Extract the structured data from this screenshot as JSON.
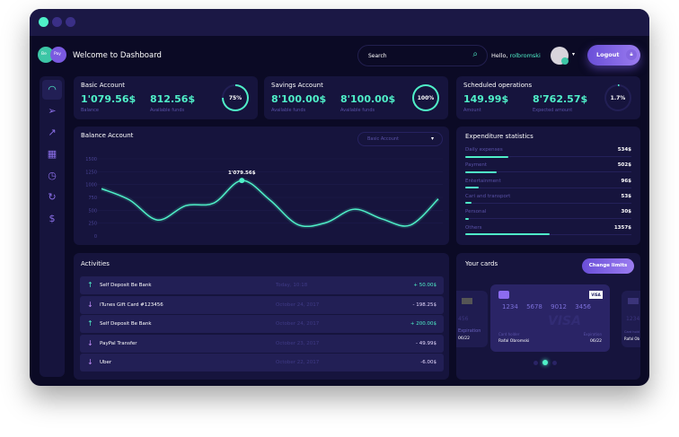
{
  "window": {
    "dots": [
      "#4ff0c8",
      "#3a2f86",
      "#3a2f86"
    ]
  },
  "logo": {
    "left": "Be",
    "right": "Pay"
  },
  "header": {
    "title": "Welcome to Dashboard",
    "search_placeholder": "Search",
    "greeting": "Hello,",
    "username": "rolbromski",
    "logout": "Logout"
  },
  "sidebar": {
    "items": [
      {
        "icon": "dashboard-gauge-icon"
      },
      {
        "icon": "send-icon"
      },
      {
        "icon": "chart-icon"
      },
      {
        "icon": "calendar-icon"
      },
      {
        "icon": "stopwatch-icon"
      },
      {
        "icon": "refresh-icon"
      },
      {
        "icon": "dollar-click-icon"
      }
    ]
  },
  "accounts": [
    {
      "title": "Basic Account",
      "v1": "1'079.56$",
      "l1": "Balance",
      "v2": "812.56$",
      "l2": "Available funds",
      "percent": "75%",
      "progress": 75
    },
    {
      "title": "Savings Account",
      "v1": "8'100.00$",
      "l1": "Available funds",
      "v2": "8'100.00$",
      "l2": "Available funds",
      "percent": "100%",
      "progress": 100
    },
    {
      "title": "Scheduled operations",
      "v1": "149.99$",
      "l1": "Amount",
      "v2": "8'762.57$",
      "l2": "Expected amount",
      "percent": "1.7%",
      "progress": 1.7
    }
  ],
  "chart_data": {
    "type": "line",
    "title": "Balance Account",
    "dropdown": "Basic Account",
    "ylim": [
      0,
      1500
    ],
    "yticks": [
      "0",
      "250",
      "500",
      "750",
      "1000",
      "1250",
      "1500"
    ],
    "values": [
      920,
      700,
      310,
      590,
      640,
      1079.56,
      700,
      220,
      260,
      520,
      330,
      210,
      720
    ],
    "highlight_label": "1'079.56$",
    "highlight_index": 5,
    "grid": true,
    "color": "#4ff0c8"
  },
  "expenditure": {
    "title": "Expenditure statistics",
    "items": [
      {
        "label": "Daily expenses",
        "value": "534$",
        "fill": 0.26
      },
      {
        "label": "Payment",
        "value": "502$",
        "fill": 0.19
      },
      {
        "label": "Entertainment",
        "value": "96$",
        "fill": 0.08
      },
      {
        "label": "Cari and transport",
        "value": "53$",
        "fill": 0.04
      },
      {
        "label": "Personal",
        "value": "30$",
        "fill": 0.02
      },
      {
        "label": "Others",
        "value": "1357$",
        "fill": 0.51
      }
    ]
  },
  "activities": {
    "title": "Activities",
    "rows": [
      {
        "name": "Self Deposit Be Bank",
        "date": "Today, 10:18",
        "amount": "+ 50.00$",
        "type": "in"
      },
      {
        "name": "iTunes Gift Card #123456",
        "date": "October 24, 2017",
        "amount": "- 198.25$",
        "type": "out"
      },
      {
        "name": "Self Deposit Be Bank",
        "date": "October 24, 2017",
        "amount": "+ 200.00$",
        "type": "in"
      },
      {
        "name": "PayPal Transfer",
        "date": "October 23, 2017",
        "amount": "- 49.99$",
        "type": "out"
      },
      {
        "name": "Uber",
        "date": "October 22, 2017",
        "amount": "-6.00$",
        "type": "out"
      }
    ]
  },
  "cards": {
    "title": "Your cards",
    "button": "Change limits",
    "number": [
      "1234",
      "5678",
      "9012",
      "3456"
    ],
    "holder_label": "Card holder",
    "holder": "Rafal Obromski",
    "exp_label": "Expiration",
    "exp": "06/22",
    "brand": "VISA",
    "side_left_number": "456",
    "side_left_exp": "06/22",
    "side_left_label": "Expiration",
    "side_right_number": "1234",
    "side_right_label": "Card hold",
    "side_right_holder": "Rafal Ob",
    "active_slide": 2,
    "slides": 3
  }
}
